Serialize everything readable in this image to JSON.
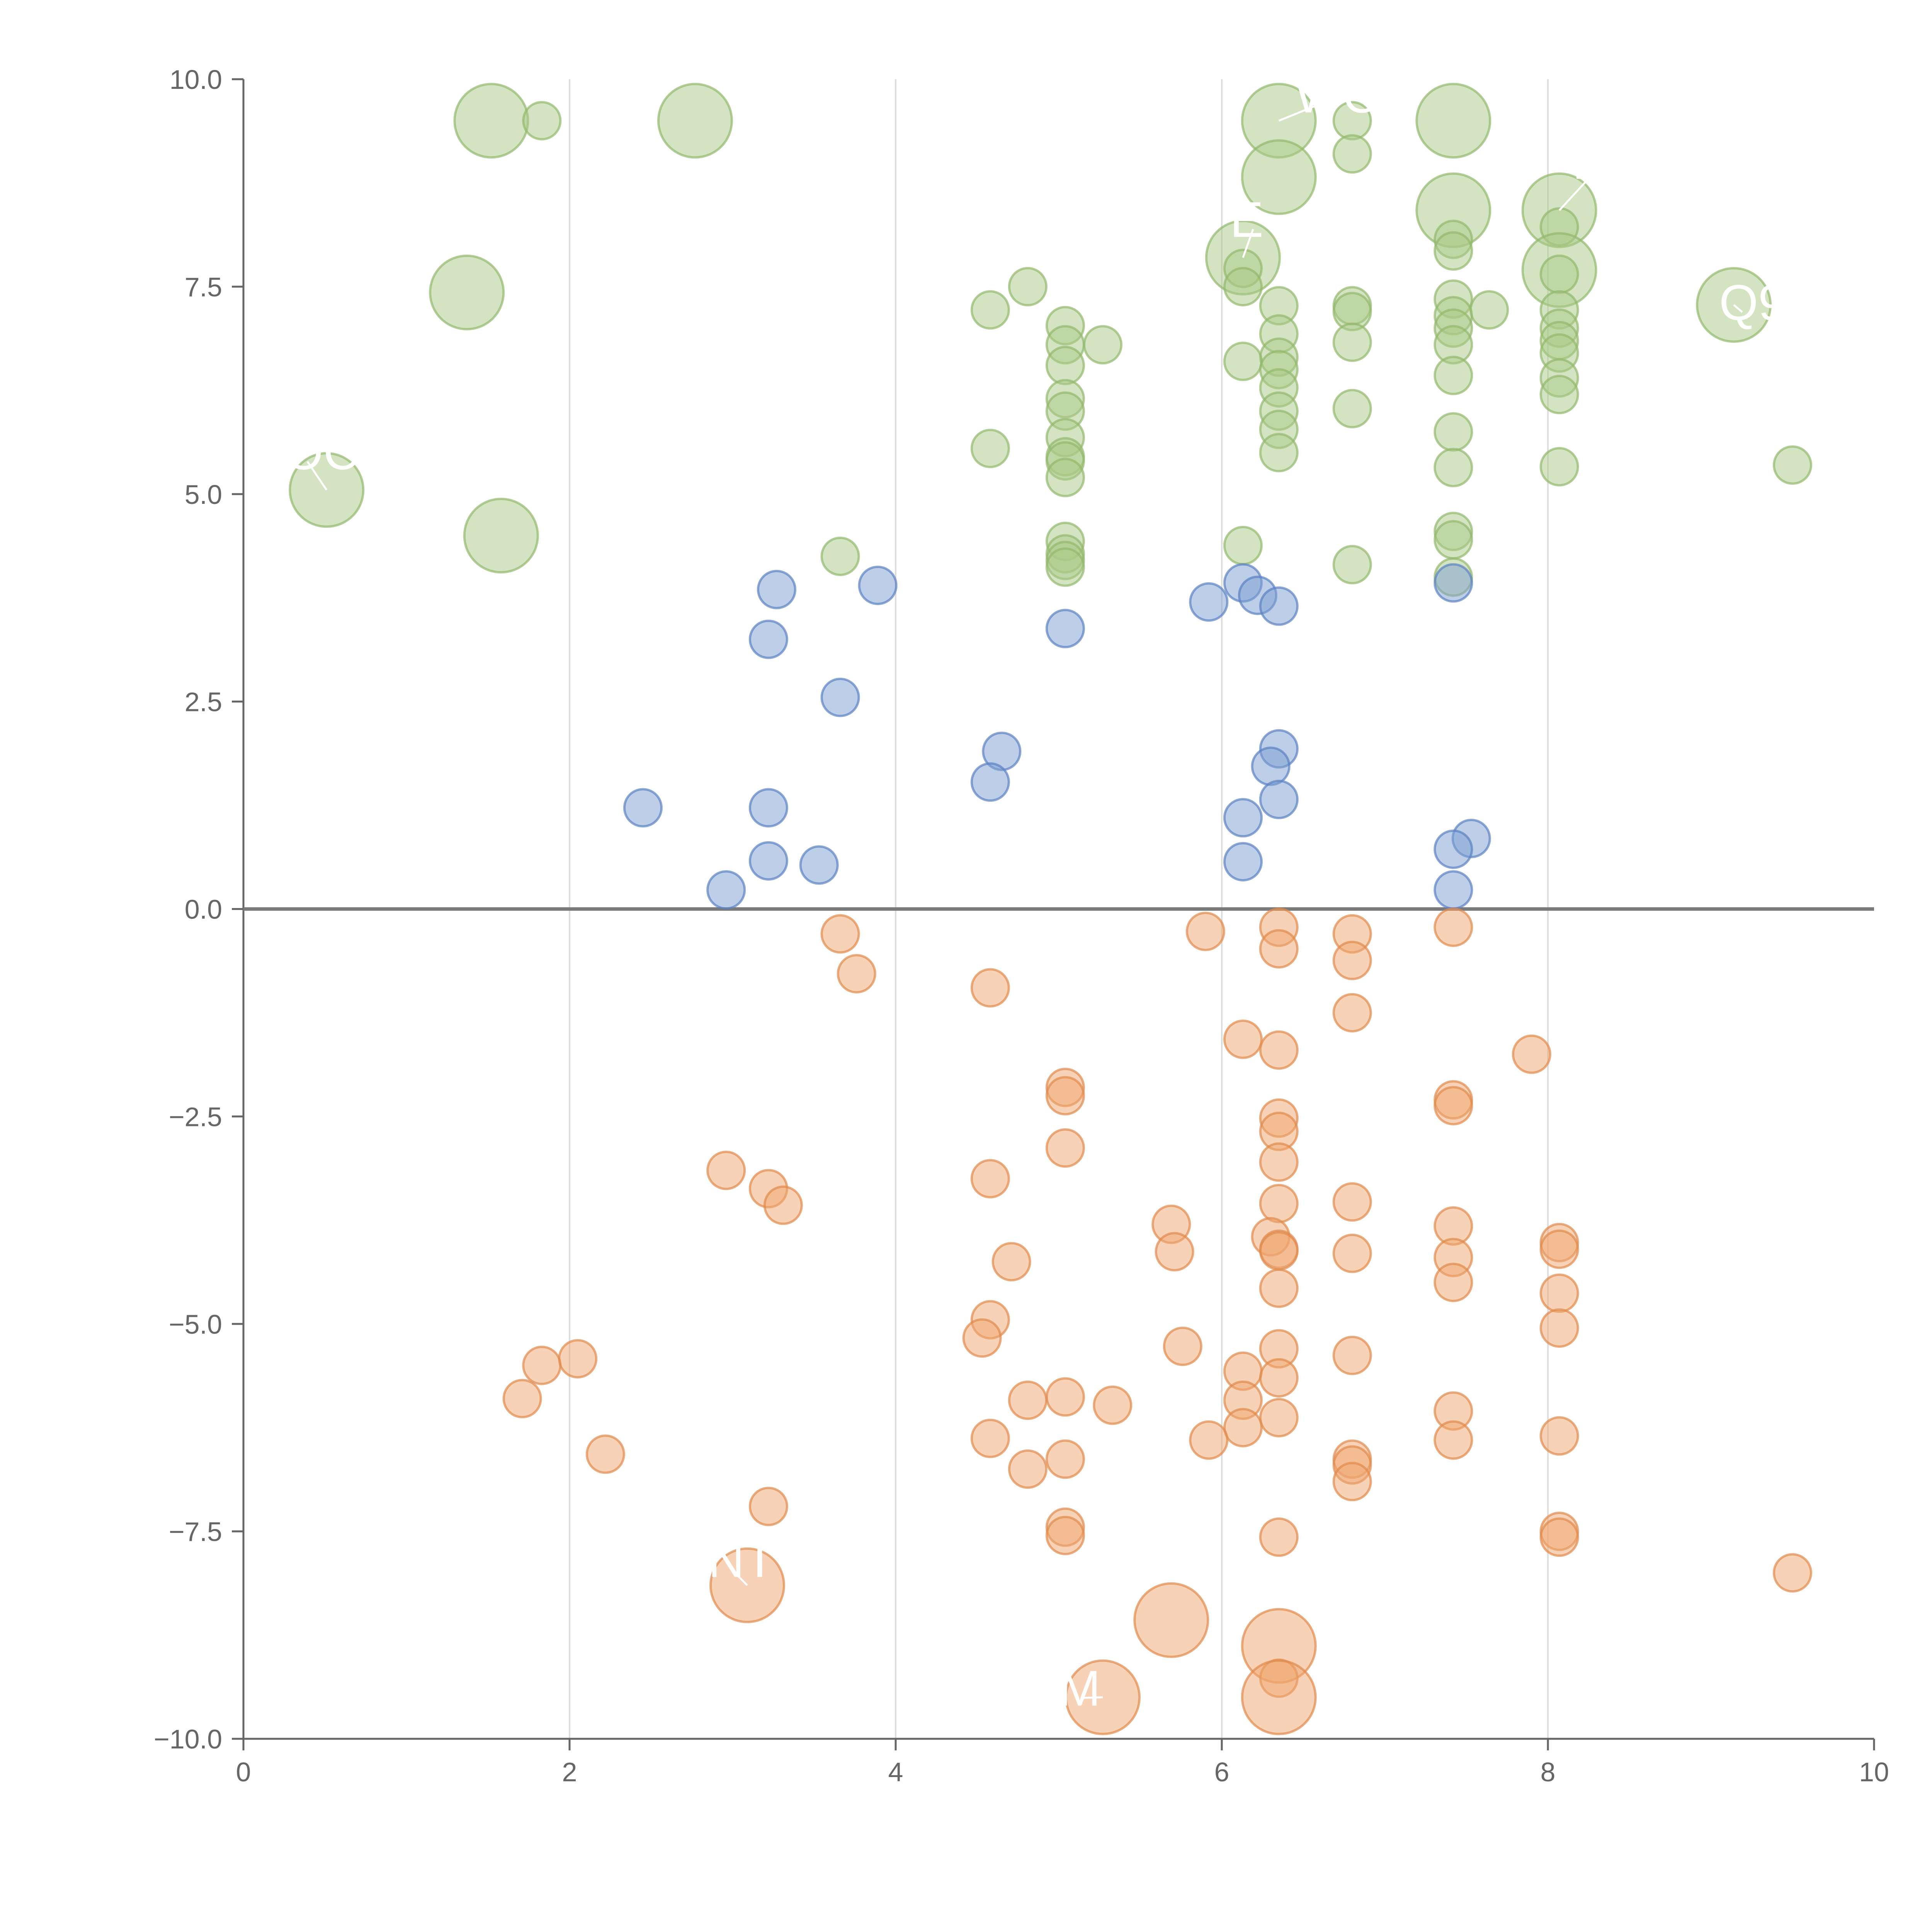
{
  "chart_data": {
    "type": "scatter",
    "xlim": [
      0,
      10
    ],
    "ylim": [
      -10,
      10
    ],
    "grid": "vertical",
    "legend": "none",
    "x_ticks": [
      "0",
      "2",
      "4",
      "6",
      "8",
      "10"
    ],
    "y_ticks": [
      "−10.0",
      "−7.5",
      "−5.0",
      "−2.5",
      "0.0",
      "2.5",
      "5.0",
      "7.5",
      "10.0"
    ],
    "colors": {
      "green_fill": "#a9c985",
      "green_stroke": "#93b86c",
      "blue_fill": "#7c9ed1",
      "blue_stroke": "#5b82c2",
      "orange_fill": "#efa56f",
      "orange_stroke": "#e08a4c",
      "zero_line": "#7a7a7a"
    },
    "series": [
      {
        "color_key": "green",
        "points": [
          [
            1.52,
            9.5,
            2
          ],
          [
            1.83,
            9.5,
            1
          ],
          [
            2.77,
            9.5,
            2
          ],
          [
            6.35,
            9.5,
            2
          ],
          [
            6.8,
            9.5,
            1
          ],
          [
            7.42,
            9.5,
            2
          ],
          [
            6.8,
            9.1,
            1
          ],
          [
            6.35,
            8.82,
            2
          ],
          [
            7.42,
            8.42,
            2
          ],
          [
            8.07,
            8.42,
            2
          ],
          [
            8.07,
            8.22,
            1
          ],
          [
            7.42,
            8.07,
            1
          ],
          [
            7.42,
            7.93,
            1
          ],
          [
            6.13,
            7.85,
            2
          ],
          [
            8.07,
            7.7,
            2
          ],
          [
            8.07,
            7.65,
            1
          ],
          [
            6.13,
            7.72,
            1
          ],
          [
            1.37,
            7.43,
            2
          ],
          [
            4.81,
            7.5,
            1
          ],
          [
            6.13,
            7.5,
            1
          ],
          [
            6.35,
            7.27,
            1
          ],
          [
            6.8,
            7.27,
            1
          ],
          [
            6.8,
            7.2,
            1
          ],
          [
            7.42,
            7.35,
            1
          ],
          [
            7.42,
            7.15,
            1
          ],
          [
            7.64,
            7.22,
            1
          ],
          [
            8.07,
            7.22,
            1
          ],
          [
            9.14,
            7.28,
            2
          ],
          [
            4.58,
            7.22,
            1
          ],
          [
            5.04,
            7.03,
            1
          ],
          [
            7.42,
            7.0,
            1
          ],
          [
            8.07,
            7.0,
            1
          ],
          [
            6.35,
            6.93,
            1
          ],
          [
            8.07,
            6.85,
            1
          ],
          [
            5.04,
            6.8,
            1
          ],
          [
            5.27,
            6.8,
            1
          ],
          [
            6.8,
            6.83,
            1
          ],
          [
            7.42,
            6.8,
            1
          ],
          [
            8.07,
            6.7,
            1
          ],
          [
            6.35,
            6.65,
            1
          ],
          [
            6.13,
            6.6,
            1
          ],
          [
            5.04,
            6.55,
            1
          ],
          [
            6.35,
            6.5,
            1
          ],
          [
            7.42,
            6.43,
            1
          ],
          [
            8.07,
            6.4,
            1
          ],
          [
            6.35,
            6.28,
            1
          ],
          [
            8.07,
            6.2,
            1
          ],
          [
            5.04,
            6.15,
            1
          ],
          [
            5.04,
            6.0,
            1
          ],
          [
            6.35,
            6.0,
            1
          ],
          [
            6.8,
            6.03,
            1
          ],
          [
            6.35,
            5.78,
            1
          ],
          [
            7.42,
            5.75,
            1
          ],
          [
            5.04,
            5.68,
            1
          ],
          [
            4.58,
            5.55,
            1
          ],
          [
            6.35,
            5.5,
            1
          ],
          [
            5.04,
            5.45,
            1
          ],
          [
            5.04,
            5.4,
            1
          ],
          [
            7.42,
            5.32,
            1
          ],
          [
            8.07,
            5.33,
            1
          ],
          [
            9.5,
            5.35,
            1
          ],
          [
            5.04,
            5.2,
            1
          ],
          [
            0.51,
            5.05,
            2
          ],
          [
            1.58,
            4.5,
            2
          ],
          [
            7.42,
            4.55,
            1
          ],
          [
            7.42,
            4.45,
            1
          ],
          [
            5.04,
            4.43,
            1
          ],
          [
            6.13,
            4.38,
            1
          ],
          [
            5.04,
            4.28,
            1
          ],
          [
            5.04,
            4.2,
            1
          ],
          [
            3.66,
            4.25,
            1
          ],
          [
            6.8,
            4.15,
            1
          ],
          [
            5.04,
            4.12,
            1
          ],
          [
            7.42,
            4.0,
            1
          ]
        ]
      },
      {
        "color_key": "blue",
        "points": [
          [
            7.42,
            3.93,
            1
          ],
          [
            3.89,
            3.9,
            1
          ],
          [
            6.13,
            3.93,
            1
          ],
          [
            3.27,
            3.85,
            1
          ],
          [
            6.22,
            3.78,
            1
          ],
          [
            5.92,
            3.7,
            1
          ],
          [
            6.35,
            3.65,
            1
          ],
          [
            5.04,
            3.38,
            1
          ],
          [
            3.22,
            3.25,
            1
          ],
          [
            3.66,
            2.55,
            1
          ],
          [
            6.35,
            1.93,
            1
          ],
          [
            4.65,
            1.9,
            1
          ],
          [
            6.3,
            1.72,
            1
          ],
          [
            4.58,
            1.53,
            1
          ],
          [
            6.35,
            1.32,
            1
          ],
          [
            2.45,
            1.22,
            1
          ],
          [
            3.22,
            1.22,
            1
          ],
          [
            6.13,
            1.1,
            1
          ],
          [
            7.53,
            0.85,
            1
          ],
          [
            7.42,
            0.72,
            1
          ],
          [
            3.22,
            0.58,
            1
          ],
          [
            6.13,
            0.57,
            1
          ],
          [
            3.53,
            0.53,
            1
          ],
          [
            2.96,
            0.23,
            1
          ],
          [
            7.42,
            0.23,
            1
          ]
        ]
      },
      {
        "color_key": "orange",
        "points": [
          [
            6.35,
            -0.22,
            1
          ],
          [
            7.42,
            -0.22,
            1
          ],
          [
            5.9,
            -0.27,
            1
          ],
          [
            3.66,
            -0.3,
            1
          ],
          [
            6.8,
            -0.3,
            1
          ],
          [
            6.35,
            -0.48,
            1
          ],
          [
            6.8,
            -0.62,
            1
          ],
          [
            3.76,
            -0.78,
            1
          ],
          [
            4.58,
            -0.95,
            1
          ],
          [
            6.8,
            -1.25,
            1
          ],
          [
            6.13,
            -1.57,
            1
          ],
          [
            6.35,
            -1.7,
            1
          ],
          [
            7.9,
            -1.75,
            1
          ],
          [
            5.04,
            -2.15,
            1
          ],
          [
            5.04,
            -2.25,
            1
          ],
          [
            7.42,
            -2.3,
            1
          ],
          [
            7.42,
            -2.37,
            1
          ],
          [
            6.35,
            -2.52,
            1
          ],
          [
            6.35,
            -2.68,
            1
          ],
          [
            5.04,
            -2.88,
            1
          ],
          [
            6.35,
            -3.05,
            1
          ],
          [
            2.96,
            -3.15,
            1
          ],
          [
            4.58,
            -3.25,
            1
          ],
          [
            3.22,
            -3.37,
            1
          ],
          [
            3.31,
            -3.57,
            1
          ],
          [
            6.8,
            -3.53,
            1
          ],
          [
            6.35,
            -3.55,
            1
          ],
          [
            5.69,
            -3.8,
            1
          ],
          [
            7.42,
            -3.82,
            1
          ],
          [
            6.3,
            -3.95,
            1
          ],
          [
            8.07,
            -4.02,
            1
          ],
          [
            8.07,
            -4.1,
            1
          ],
          [
            6.35,
            -4.1,
            1
          ],
          [
            6.35,
            -4.12,
            1
          ],
          [
            5.71,
            -4.13,
            1
          ],
          [
            6.8,
            -4.15,
            1
          ],
          [
            7.42,
            -4.2,
            1
          ],
          [
            4.71,
            -4.25,
            1
          ],
          [
            7.42,
            -4.5,
            1
          ],
          [
            6.35,
            -4.57,
            1
          ],
          [
            8.07,
            -4.63,
            1
          ],
          [
            4.58,
            -4.95,
            1
          ],
          [
            8.07,
            -5.05,
            1
          ],
          [
            4.53,
            -5.17,
            1
          ],
          [
            5.76,
            -5.27,
            1
          ],
          [
            6.35,
            -5.3,
            1
          ],
          [
            6.8,
            -5.38,
            1
          ],
          [
            2.05,
            -5.42,
            1
          ],
          [
            1.83,
            -5.5,
            1
          ],
          [
            6.13,
            -5.57,
            1
          ],
          [
            6.35,
            -5.65,
            1
          ],
          [
            1.71,
            -5.9,
            1
          ],
          [
            5.04,
            -5.88,
            1
          ],
          [
            4.81,
            -5.92,
            1
          ],
          [
            6.13,
            -5.92,
            1
          ],
          [
            5.33,
            -5.98,
            1
          ],
          [
            7.42,
            -6.05,
            1
          ],
          [
            6.35,
            -6.13,
            1
          ],
          [
            6.13,
            -6.25,
            1
          ],
          [
            8.07,
            -6.35,
            1
          ],
          [
            4.58,
            -6.38,
            1
          ],
          [
            5.92,
            -6.4,
            1
          ],
          [
            7.42,
            -6.4,
            1
          ],
          [
            2.22,
            -6.57,
            1
          ],
          [
            5.04,
            -6.63,
            1
          ],
          [
            6.8,
            -6.63,
            1
          ],
          [
            6.8,
            -6.7,
            1
          ],
          [
            4.81,
            -6.75,
            1
          ],
          [
            6.8,
            -6.9,
            1
          ],
          [
            3.22,
            -7.2,
            1
          ],
          [
            5.04,
            -7.45,
            1
          ],
          [
            8.07,
            -7.5,
            1
          ],
          [
            5.04,
            -7.55,
            1
          ],
          [
            6.35,
            -7.57,
            1
          ],
          [
            8.07,
            -7.57,
            1
          ],
          [
            9.5,
            -8.0,
            1
          ],
          [
            3.09,
            -8.15,
            2
          ],
          [
            5.69,
            -8.57,
            2
          ],
          [
            6.35,
            -8.88,
            2
          ],
          [
            6.35,
            -9.27,
            1
          ],
          [
            5.27,
            -9.5,
            2
          ],
          [
            6.35,
            -9.5,
            2
          ]
        ]
      }
    ],
    "annotations": [
      {
        "text": "OC",
        "x": 0.25,
        "y": 5.3,
        "px": 0.51,
        "py": 5.05
      },
      {
        "text": "E",
        "x": 6.05,
        "y": 8.1,
        "px": 6.13,
        "py": 7.85
      },
      {
        "text": "WOO",
        "x": 6.45,
        "y": 9.6,
        "px": 6.35,
        "py": 9.5
      },
      {
        "text": "D",
        "x": 8.15,
        "y": 8.8,
        "px": 8.07,
        "py": 8.42
      },
      {
        "text": "Q9",
        "x": 9.05,
        "y": 7.1,
        "px": 9.14,
        "py": 7.28
      },
      {
        "text": "NT",
        "x": 2.85,
        "y": -8.05,
        "px": 3.09,
        "py": -8.15
      },
      {
        "text": "M",
        "x": 5.0,
        "y": -9.6,
        "px": 5.27,
        "py": -9.5
      }
    ]
  }
}
